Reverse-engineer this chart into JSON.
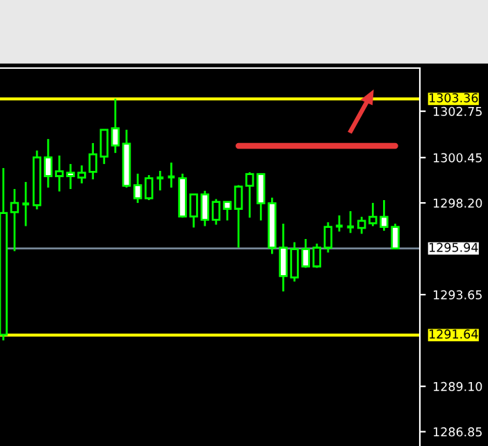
{
  "chart_data": {
    "type": "candlestick",
    "categories": [
      null,
      null,
      null,
      null,
      null,
      null,
      null,
      null,
      null,
      null,
      null,
      null,
      null,
      null,
      null,
      null,
      null,
      null,
      null,
      null,
      null,
      null,
      null,
      null,
      null,
      null,
      null,
      null,
      null,
      null,
      null,
      null,
      null,
      null,
      null,
      null
    ],
    "ohlc": [
      [
        1291.66,
        1299.93,
        1291.38,
        1297.7
      ],
      [
        1297.74,
        1298.89,
        1295.81,
        1298.2
      ],
      [
        1298.15,
        1299.24,
        1297.05,
        1298.15
      ],
      [
        1298.09,
        1300.8,
        1297.88,
        1300.46
      ],
      [
        1300.46,
        1301.37,
        1298.96,
        1299.53
      ],
      [
        1299.53,
        1300.55,
        1298.77,
        1299.77
      ],
      [
        1299.7,
        1300.13,
        1298.89,
        1299.53
      ],
      [
        1299.46,
        1300.06,
        1299.17,
        1299.7
      ],
      [
        1299.74,
        1301.17,
        1299.37,
        1300.61
      ],
      [
        1300.5,
        1301.83,
        1300.13,
        1301.83
      ],
      [
        1301.9,
        1303.37,
        1300.68,
        1301.05
      ],
      [
        1301.14,
        1301.83,
        1298.96,
        1299.05
      ],
      [
        1299.08,
        1299.65,
        1298.2,
        1298.43
      ],
      [
        1298.43,
        1299.58,
        1298.34,
        1299.42
      ],
      [
        1299.44,
        1299.79,
        1298.82,
        1299.44
      ],
      [
        1299.49,
        1300.2,
        1298.96,
        1299.49
      ],
      [
        1299.42,
        1299.65,
        1297.47,
        1297.53
      ],
      [
        1297.53,
        1298.62,
        1296.98,
        1298.62
      ],
      [
        1298.62,
        1298.8,
        1297.05,
        1297.36
      ],
      [
        1297.36,
        1298.39,
        1297.12,
        1298.25
      ],
      [
        1298.25,
        1298.25,
        1297.33,
        1297.91
      ],
      [
        1297.91,
        1299.08,
        1295.98,
        1299.01
      ],
      [
        1299.05,
        1299.72,
        1297.47,
        1299.63
      ],
      [
        1299.63,
        1299.63,
        1297.33,
        1298.18
      ],
      [
        1298.18,
        1298.46,
        1295.67,
        1295.98
      ],
      [
        1295.98,
        1297.17,
        1293.81,
        1294.57
      ],
      [
        1294.5,
        1296.25,
        1294.3,
        1295.91
      ],
      [
        1295.91,
        1296.41,
        1294.98,
        1295.05
      ],
      [
        1295.05,
        1296.18,
        1294.98,
        1295.98
      ],
      [
        1295.98,
        1297.24,
        1295.74,
        1297.01
      ],
      [
        1297.05,
        1297.58,
        1296.78,
        1297.05
      ],
      [
        1297.01,
        1297.79,
        1296.71,
        1297.01
      ],
      [
        1296.96,
        1297.51,
        1296.67,
        1297.31
      ],
      [
        1297.19,
        1298.2,
        1297.05,
        1297.51
      ],
      [
        1297.51,
        1298.34,
        1296.82,
        1297.01
      ],
      [
        1297.01,
        1297.17,
        1295.91,
        1295.94
      ]
    ],
    "color": "#00ff00",
    "colors": [
      "#00ff00",
      "#00ff00",
      "#00ff00",
      "#00ff00",
      "#ffffff",
      "#00ff00",
      "#ffffff",
      "#00ff00",
      "#00ff00",
      "#00ff00",
      "#ffffff",
      "#ffffff",
      "#ffffff",
      "#00ff00",
      "#00ff00",
      "#00ff00",
      "#ffffff",
      "#00ff00",
      "#ffffff",
      "#00ff00",
      "#ffffff",
      "#00ff00",
      "#00ff00",
      "#ffffff",
      "#ffffff",
      "#ffffff",
      "#00ff00",
      "#ffffff",
      "#00ff00",
      "#00ff00",
      "#00ff00",
      "#00ff00",
      "#00ff00",
      "#00ff00",
      "#ffffff",
      "#ffffff"
    ],
    "series": [
      {
        "type": "line",
        "color": "#e83838",
        "values": [
          null,
          null,
          null,
          null,
          null,
          null,
          null,
          null,
          null,
          null,
          null,
          null,
          null,
          null,
          null,
          null,
          null,
          null,
          null,
          null,
          null,
          1301.03,
          1301.03,
          1301.03,
          1301.03,
          1301.03,
          1301.03,
          1301.03,
          1301.03,
          1301.03,
          1301.03,
          1301.03,
          1301.03,
          1301.03,
          1301.03,
          1301.03
        ]
      }
    ],
    "ylim": [
      1286.14,
      1304.89
    ],
    "yticks": [
      {
        "value": 1302.75,
        "label": "1302.75"
      },
      {
        "value": 1300.45,
        "label": "1300.45"
      },
      {
        "value": 1298.2,
        "label": "1298.20"
      },
      {
        "value": 1293.65,
        "label": "1293.65"
      },
      {
        "value": 1289.1,
        "label": "1289.10"
      },
      {
        "value": 1286.85,
        "label": "1286.85"
      }
    ],
    "ref_lines": [
      {
        "axis": "y",
        "value": 1303.36,
        "label": "1303.36",
        "color": "#ffff00"
      },
      {
        "axis": "y",
        "value": 1291.64,
        "label": "1291.64",
        "color": "#ffff00"
      },
      {
        "axis": "y",
        "value": 1295.94,
        "label": "1295.94",
        "color": "#778899"
      }
    ],
    "grid": false,
    "legend": false
  }
}
